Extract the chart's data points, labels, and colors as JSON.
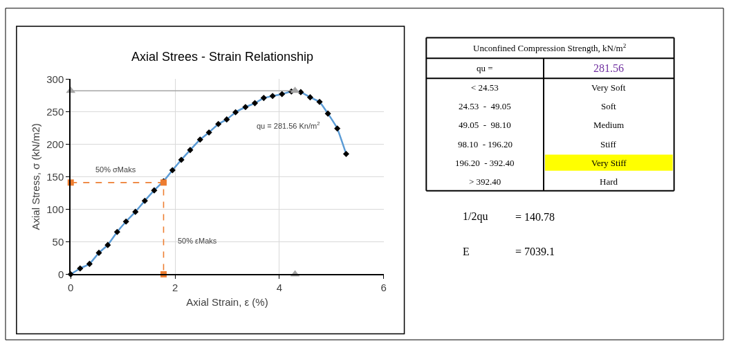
{
  "chart_data": [
    {
      "type": "line",
      "title": "Axial Strees - Strain Relationship",
      "xlabel": "Axial Strain, ε (%)",
      "ylabel": "Axial Stress, σ (kN/m2)",
      "xlim": [
        0,
        6
      ],
      "xticks": [
        0,
        2,
        4,
        6
      ],
      "ylim": [
        0,
        300
      ],
      "yticks": [
        0,
        50,
        100,
        150,
        200,
        250,
        300
      ],
      "grid": true,
      "series": [
        {
          "type": "line",
          "color": "#5b9bd5",
          "marker": "diamond",
          "line_style": "solid",
          "x": [
            0,
            0.18,
            0.36,
            0.54,
            0.71,
            0.89,
            1.06,
            1.24,
            1.42,
            1.6,
            1.78,
            1.95,
            2.12,
            2.29,
            2.48,
            2.65,
            2.83,
            2.99,
            3.16,
            3.35,
            3.53,
            3.7,
            3.87,
            4.05,
            4.23,
            4.41,
            4.59,
            4.77,
            4.93,
            5.11,
            5.28
          ],
          "values": [
            0,
            9,
            16,
            33,
            45,
            65,
            81,
            96,
            113,
            129,
            143,
            160,
            176,
            191,
            207,
            218,
            231,
            238,
            249,
            257,
            263,
            271,
            274,
            277,
            281,
            280,
            272,
            265,
            247,
            224,
            185
          ]
        },
        {
          "type": "line",
          "color": "#a5a5a5",
          "marker": "triangle",
          "line_style": "solid",
          "x": [
            0,
            4.3
          ],
          "values": [
            282,
            282
          ]
        },
        {
          "type": "scatter",
          "color": "#a5a5a5",
          "marker": "triangle",
          "x": [
            4.3
          ],
          "values": [
            0
          ]
        },
        {
          "type": "line",
          "color": "#ed7d31",
          "marker": "square",
          "line_style": "dashed",
          "x": [
            0,
            1.78,
            1.78
          ],
          "values": [
            141,
            141,
            0
          ]
        }
      ],
      "annotations": [
        "50% σMaks",
        "50% εMaks",
        "qu = 281.56 Kn/m$^{2}$"
      ]
    },
    {
      "type": "other",
      "title": "Unconfined Compression Strength, kN/m$^{2}$",
      "annotations": [
        "qu =",
        "281.56",
        "< 24.53",
        "Very Soft",
        "24.53  -  49.05",
        "Soft",
        "49.05  -  98.10",
        "Medium",
        "98.10  - 196.20",
        "Stiff",
        "196.20  - 392.40",
        "Very Stiff",
        "> 392.40",
        "Hard",
        "1/2qu",
        "= 140.78",
        "E",
        "= 7039.1"
      ]
    }
  ]
}
